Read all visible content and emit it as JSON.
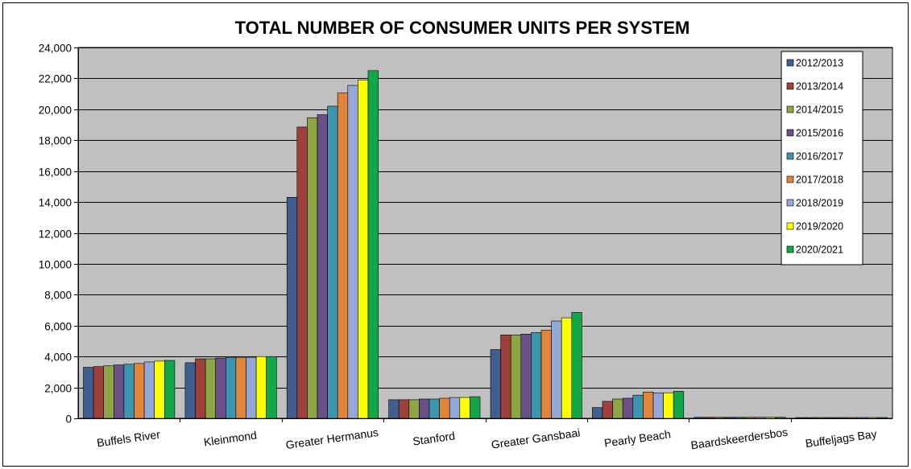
{
  "chart_data": {
    "type": "bar",
    "title": "TOTAL NUMBER OF CONSUMER UNITS PER SYSTEM",
    "xlabel": "",
    "ylabel": "",
    "ylim": [
      0,
      24000
    ],
    "yticks": [
      0,
      2000,
      4000,
      6000,
      8000,
      10000,
      12000,
      14000,
      16000,
      18000,
      20000,
      22000,
      24000
    ],
    "ytick_labels": [
      "0",
      "2,000",
      "4,000",
      "6,000",
      "8,000",
      "10,000",
      "12,000",
      "14,000",
      "16,000",
      "18,000",
      "20,000",
      "22,000",
      "24,000"
    ],
    "grid": true,
    "legend_position": "top-right",
    "categories": [
      "Buffels River",
      "Kleinmond",
      "Greater Hermanus",
      "Stanford",
      "Greater Gansbaai",
      "Pearly Beach",
      "Baardskeerdersbos",
      "Buffeljags Bay"
    ],
    "series": [
      {
        "name": "2012/2013",
        "color": "#3F5F8F",
        "values": [
          3300,
          3600,
          14300,
          1200,
          4450,
          700,
          70,
          50
        ]
      },
      {
        "name": "2013/2014",
        "color": "#A0403C",
        "values": [
          3350,
          3850,
          18850,
          1200,
          5400,
          1100,
          70,
          50
        ]
      },
      {
        "name": "2014/2015",
        "color": "#8BA642",
        "values": [
          3400,
          3850,
          19450,
          1200,
          5400,
          1250,
          70,
          50
        ]
      },
      {
        "name": "2015/2016",
        "color": "#6B5088",
        "values": [
          3450,
          3900,
          19650,
          1250,
          5450,
          1300,
          70,
          50
        ]
      },
      {
        "name": "2016/2017",
        "color": "#3C97AE",
        "values": [
          3500,
          3950,
          20200,
          1250,
          5550,
          1500,
          70,
          50
        ]
      },
      {
        "name": "2017/2018",
        "color": "#E0853A",
        "values": [
          3550,
          3950,
          21050,
          1300,
          5700,
          1700,
          70,
          50
        ]
      },
      {
        "name": "2018/2019",
        "color": "#93A8D8",
        "values": [
          3650,
          3950,
          21550,
          1350,
          6300,
          1650,
          70,
          50
        ]
      },
      {
        "name": "2019/2020",
        "color": "#FFFF00",
        "values": [
          3700,
          4000,
          21900,
          1350,
          6500,
          1650,
          70,
          50
        ]
      },
      {
        "name": "2020/2021",
        "color": "#12A84A",
        "values": [
          3750,
          4000,
          22500,
          1400,
          6850,
          1750,
          70,
          50
        ]
      }
    ],
    "colors": {
      "plot_background": "#C0C0C0",
      "gridline": "#000000",
      "frame": "#000000"
    }
  }
}
